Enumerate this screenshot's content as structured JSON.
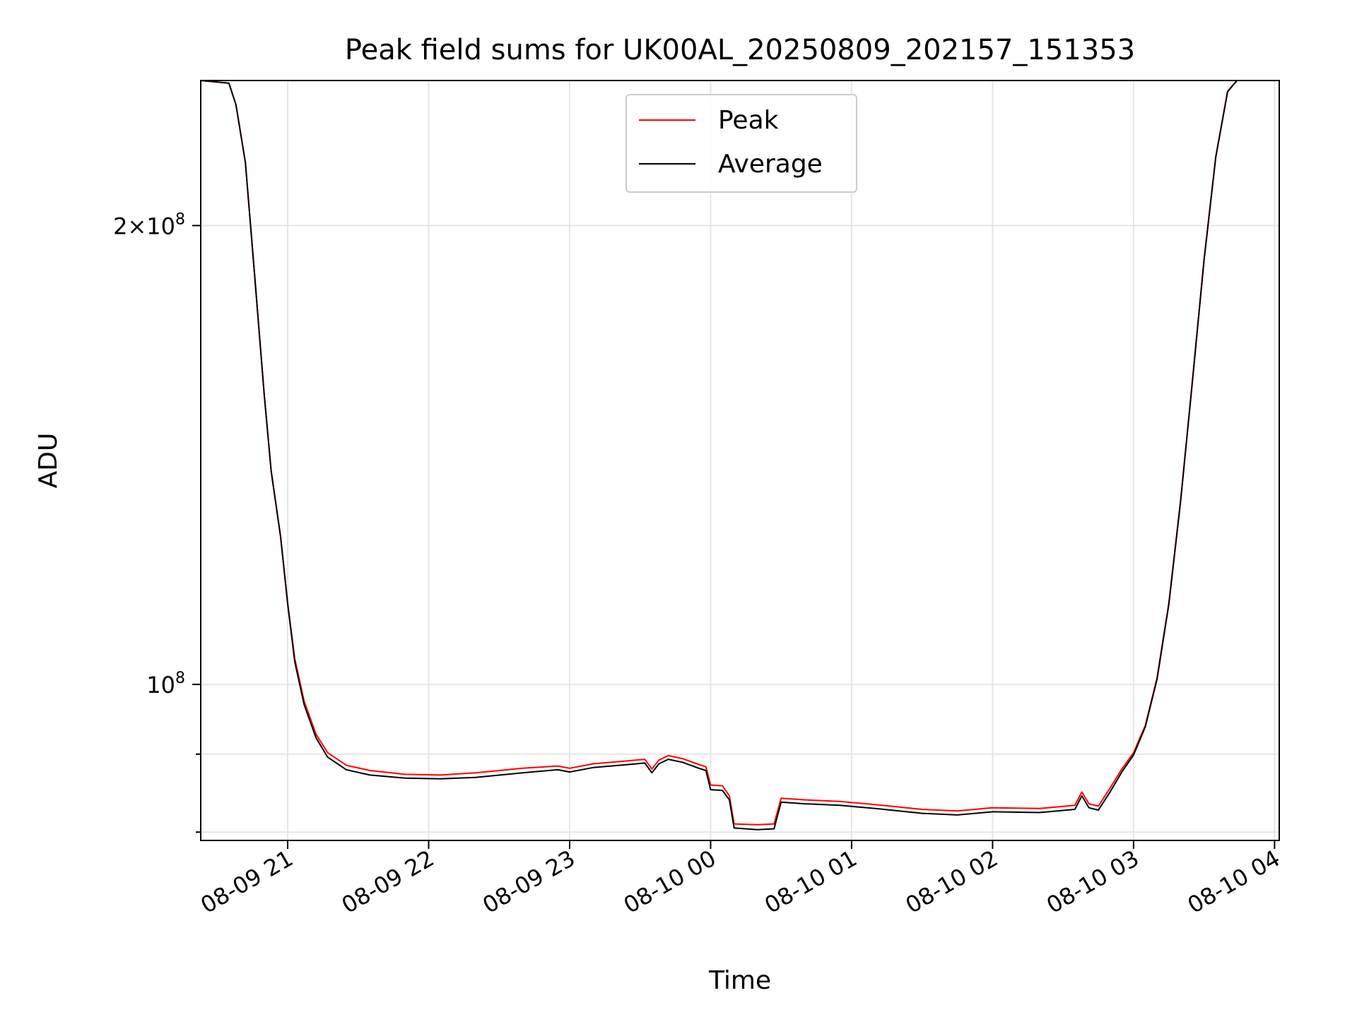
{
  "chart_data": {
    "type": "line",
    "title": "Peak field sums for UK00AL_20250809_202157_151353",
    "xlabel": "Time",
    "ylabel": "ADU",
    "y_scale": "log",
    "grid": true,
    "legend_position": "upper center",
    "xlim": [
      "2025-08-09 20:23",
      "2025-08-10 04:02"
    ],
    "ylim": [
      79000000,
      249000000
    ],
    "x_ticks": [
      {
        "value": "2025-08-09 21:00",
        "label": "08-09 21"
      },
      {
        "value": "2025-08-09 22:00",
        "label": "08-09 22"
      },
      {
        "value": "2025-08-09 23:00",
        "label": "08-09 23"
      },
      {
        "value": "2025-08-10 00:00",
        "label": "08-10 00"
      },
      {
        "value": "2025-08-10 01:00",
        "label": "08-10 01"
      },
      {
        "value": "2025-08-10 02:00",
        "label": "08-10 02"
      },
      {
        "value": "2025-08-10 03:00",
        "label": "08-10 03"
      },
      {
        "value": "2025-08-10 04:00",
        "label": "08-10 04"
      }
    ],
    "y_major_ticks": [
      {
        "value": 100000000,
        "mantissa": "",
        "exponent": "8"
      },
      {
        "value": 200000000,
        "mantissa": "2",
        "exponent": "8"
      }
    ],
    "y_minor_ticks": [
      80000000,
      90000000
    ],
    "series": [
      {
        "name": "Peak",
        "color": "#ff0000",
        "points": [
          [
            "2025-08-09 20:23",
            249000000
          ],
          [
            "2025-08-09 20:35",
            248000000
          ],
          [
            "2025-08-09 20:38",
            240000000
          ],
          [
            "2025-08-09 20:42",
            220000000
          ],
          [
            "2025-08-09 20:46",
            185000000
          ],
          [
            "2025-08-09 20:50",
            155000000
          ],
          [
            "2025-08-09 20:53",
            138000000
          ],
          [
            "2025-08-09 20:57",
            125000000
          ],
          [
            "2025-08-09 21:00",
            113000000
          ],
          [
            "2025-08-09 21:03",
            104000000
          ],
          [
            "2025-08-09 21:07",
            97500000
          ],
          [
            "2025-08-09 21:12",
            92800000
          ],
          [
            "2025-08-09 21:17",
            90200000
          ],
          [
            "2025-08-09 21:25",
            88500000
          ],
          [
            "2025-08-09 21:35",
            87800000
          ],
          [
            "2025-08-09 21:50",
            87300000
          ],
          [
            "2025-08-09 22:05",
            87200000
          ],
          [
            "2025-08-09 22:20",
            87500000
          ],
          [
            "2025-08-09 22:40",
            88100000
          ],
          [
            "2025-08-09 22:55",
            88400000
          ],
          [
            "2025-08-09 23:00",
            88100000
          ],
          [
            "2025-08-09 23:10",
            88700000
          ],
          [
            "2025-08-09 23:25",
            89100000
          ],
          [
            "2025-08-09 23:32",
            89300000
          ],
          [
            "2025-08-09 23:35",
            88000000
          ],
          [
            "2025-08-09 23:38",
            89200000
          ],
          [
            "2025-08-09 23:42",
            89800000
          ],
          [
            "2025-08-09 23:48",
            89400000
          ],
          [
            "2025-08-09 23:55",
            88600000
          ],
          [
            "2025-08-09 23:58",
            88300000
          ],
          [
            "2025-08-10 00:00",
            85900000
          ],
          [
            "2025-08-10 00:05",
            85800000
          ],
          [
            "2025-08-10 00:08",
            84500000
          ],
          [
            "2025-08-10 00:10",
            81000000
          ],
          [
            "2025-08-10 00:20",
            80900000
          ],
          [
            "2025-08-10 00:27",
            81000000
          ],
          [
            "2025-08-10 00:30",
            84200000
          ],
          [
            "2025-08-10 00:40",
            84000000
          ],
          [
            "2025-08-10 00:55",
            83800000
          ],
          [
            "2025-08-10 01:10",
            83400000
          ],
          [
            "2025-08-10 01:30",
            82800000
          ],
          [
            "2025-08-10 01:45",
            82600000
          ],
          [
            "2025-08-10 02:00",
            83000000
          ],
          [
            "2025-08-10 02:20",
            82900000
          ],
          [
            "2025-08-10 02:35",
            83300000
          ],
          [
            "2025-08-10 02:38",
            85000000
          ],
          [
            "2025-08-10 02:41",
            83500000
          ],
          [
            "2025-08-10 02:45",
            83200000
          ],
          [
            "2025-08-10 02:50",
            85500000
          ],
          [
            "2025-08-10 02:55",
            88000000
          ],
          [
            "2025-08-10 03:00",
            90200000
          ],
          [
            "2025-08-10 03:05",
            94000000
          ],
          [
            "2025-08-10 03:10",
            101000000
          ],
          [
            "2025-08-10 03:15",
            113000000
          ],
          [
            "2025-08-10 03:20",
            132000000
          ],
          [
            "2025-08-10 03:25",
            158000000
          ],
          [
            "2025-08-10 03:30",
            190000000
          ],
          [
            "2025-08-10 03:35",
            222000000
          ],
          [
            "2025-08-10 03:40",
            245000000
          ],
          [
            "2025-08-10 03:44",
            249000000
          ],
          [
            "2025-08-10 04:02",
            249000000
          ]
        ]
      },
      {
        "name": "Average",
        "color": "#000000",
        "points": [
          [
            "2025-08-09 20:23",
            249000000
          ],
          [
            "2025-08-09 20:35",
            248000000
          ],
          [
            "2025-08-09 20:38",
            240000000
          ],
          [
            "2025-08-09 20:42",
            220000000
          ],
          [
            "2025-08-09 20:46",
            185000000
          ],
          [
            "2025-08-09 20:50",
            155000000
          ],
          [
            "2025-08-09 20:53",
            138000000
          ],
          [
            "2025-08-09 20:57",
            125000000
          ],
          [
            "2025-08-09 21:00",
            113000000
          ],
          [
            "2025-08-09 21:03",
            103500000
          ],
          [
            "2025-08-09 21:07",
            97000000
          ],
          [
            "2025-08-09 21:12",
            92300000
          ],
          [
            "2025-08-09 21:17",
            89600000
          ],
          [
            "2025-08-09 21:25",
            87900000
          ],
          [
            "2025-08-09 21:35",
            87200000
          ],
          [
            "2025-08-09 21:50",
            86800000
          ],
          [
            "2025-08-09 22:05",
            86700000
          ],
          [
            "2025-08-09 22:20",
            86900000
          ],
          [
            "2025-08-09 22:40",
            87500000
          ],
          [
            "2025-08-09 22:55",
            87900000
          ],
          [
            "2025-08-09 23:00",
            87600000
          ],
          [
            "2025-08-09 23:10",
            88200000
          ],
          [
            "2025-08-09 23:25",
            88600000
          ],
          [
            "2025-08-09 23:32",
            88800000
          ],
          [
            "2025-08-09 23:35",
            87500000
          ],
          [
            "2025-08-09 23:38",
            88700000
          ],
          [
            "2025-08-09 23:42",
            89300000
          ],
          [
            "2025-08-09 23:48",
            88900000
          ],
          [
            "2025-08-09 23:55",
            88100000
          ],
          [
            "2025-08-09 23:58",
            87800000
          ],
          [
            "2025-08-10 00:00",
            85300000
          ],
          [
            "2025-08-10 00:05",
            85200000
          ],
          [
            "2025-08-10 00:08",
            84000000
          ],
          [
            "2025-08-10 00:10",
            80500000
          ],
          [
            "2025-08-10 00:20",
            80300000
          ],
          [
            "2025-08-10 00:27",
            80400000
          ],
          [
            "2025-08-10 00:30",
            83700000
          ],
          [
            "2025-08-10 00:40",
            83500000
          ],
          [
            "2025-08-10 00:55",
            83300000
          ],
          [
            "2025-08-10 01:10",
            82900000
          ],
          [
            "2025-08-10 01:30",
            82300000
          ],
          [
            "2025-08-10 01:45",
            82100000
          ],
          [
            "2025-08-10 02:00",
            82500000
          ],
          [
            "2025-08-10 02:20",
            82400000
          ],
          [
            "2025-08-10 02:35",
            82800000
          ],
          [
            "2025-08-10 02:38",
            84500000
          ],
          [
            "2025-08-10 02:41",
            83000000
          ],
          [
            "2025-08-10 02:45",
            82700000
          ],
          [
            "2025-08-10 02:50",
            85000000
          ],
          [
            "2025-08-10 02:55",
            87600000
          ],
          [
            "2025-08-10 03:00",
            89900000
          ],
          [
            "2025-08-10 03:05",
            93800000
          ],
          [
            "2025-08-10 03:10",
            100800000
          ],
          [
            "2025-08-10 03:15",
            112800000
          ],
          [
            "2025-08-10 03:20",
            131800000
          ],
          [
            "2025-08-10 03:25",
            157800000
          ],
          [
            "2025-08-10 03:30",
            189800000
          ],
          [
            "2025-08-10 03:35",
            221800000
          ],
          [
            "2025-08-10 03:40",
            244800000
          ],
          [
            "2025-08-10 03:44",
            249000000
          ],
          [
            "2025-08-10 04:02",
            249000000
          ]
        ]
      }
    ]
  }
}
